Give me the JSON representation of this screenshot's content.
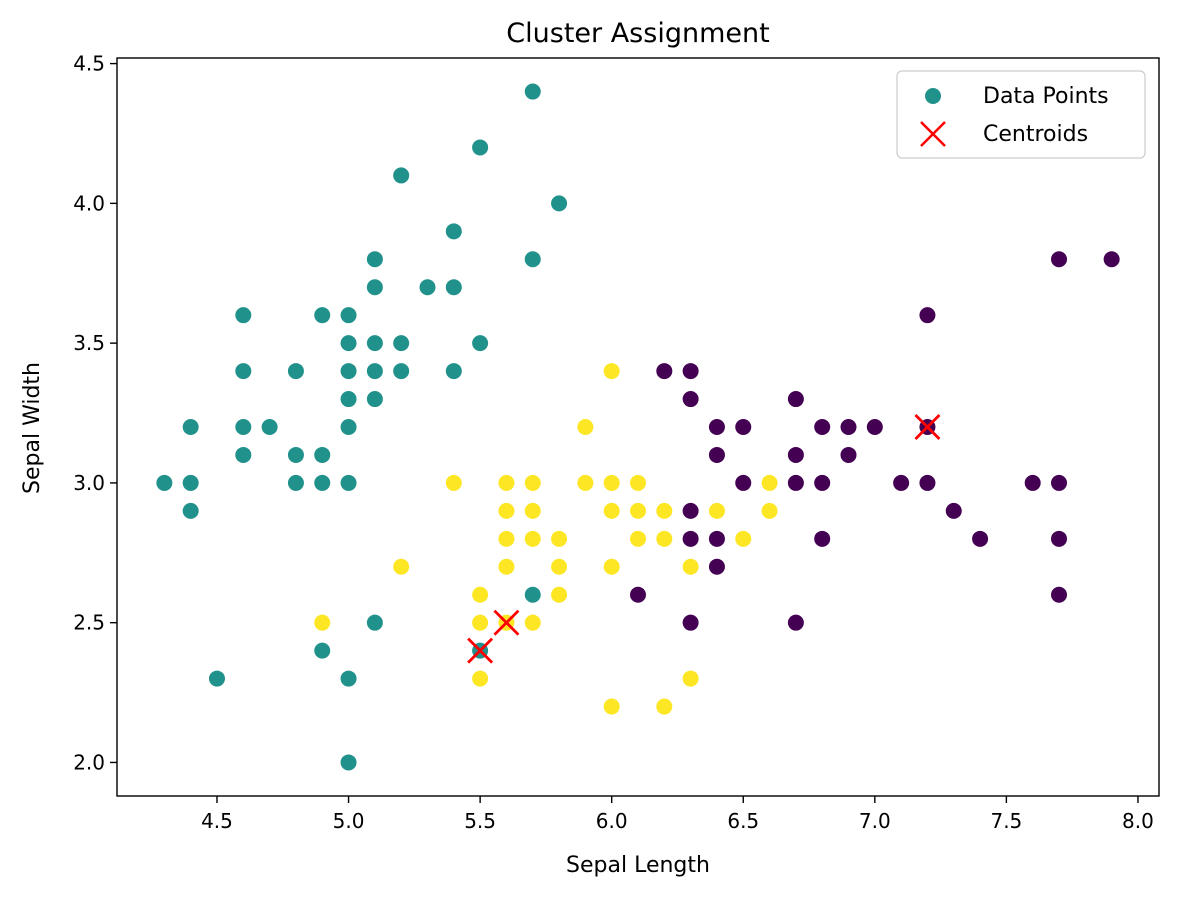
{
  "chart_data": {
    "type": "scatter",
    "title": "Cluster Assignment",
    "xlabel": "Sepal Length",
    "ylabel": "Sepal Width",
    "xlim": [
      4.12,
      8.08
    ],
    "ylim": [
      1.88,
      4.52
    ],
    "xticks": [
      "4.5",
      "5.0",
      "5.5",
      "6.0",
      "6.5",
      "7.0",
      "7.5",
      "8.0"
    ],
    "yticks": [
      "2.0",
      "2.5",
      "3.0",
      "3.5",
      "4.0",
      "4.5"
    ],
    "grid": false,
    "legend_position": "top-right",
    "legend": [
      {
        "label": "Data Points",
        "marker": "circle",
        "color": "#21918c"
      },
      {
        "label": "Centroids",
        "marker": "x",
        "color": "#ff0000"
      }
    ],
    "cluster_colors": {
      "purple": "#440154",
      "teal": "#21918c",
      "yellow": "#fde725"
    },
    "points": [
      [
        5.7,
        4.4,
        "teal"
      ],
      [
        5.5,
        4.2,
        "teal"
      ],
      [
        5.2,
        4.1,
        "teal"
      ],
      [
        5.8,
        4.0,
        "teal"
      ],
      [
        5.4,
        3.9,
        "teal"
      ],
      [
        5.1,
        3.8,
        "teal"
      ],
      [
        5.7,
        3.8,
        "teal"
      ],
      [
        5.1,
        3.7,
        "teal"
      ],
      [
        5.3,
        3.7,
        "teal"
      ],
      [
        5.4,
        3.7,
        "teal"
      ],
      [
        4.6,
        3.6,
        "teal"
      ],
      [
        4.9,
        3.6,
        "teal"
      ],
      [
        5.0,
        3.6,
        "teal"
      ],
      [
        5.0,
        3.5,
        "teal"
      ],
      [
        5.1,
        3.5,
        "teal"
      ],
      [
        5.2,
        3.5,
        "teal"
      ],
      [
        5.5,
        3.5,
        "teal"
      ],
      [
        4.6,
        3.4,
        "teal"
      ],
      [
        4.8,
        3.4,
        "teal"
      ],
      [
        5.0,
        3.4,
        "teal"
      ],
      [
        5.1,
        3.4,
        "teal"
      ],
      [
        5.2,
        3.4,
        "teal"
      ],
      [
        5.4,
        3.4,
        "teal"
      ],
      [
        5.0,
        3.3,
        "teal"
      ],
      [
        5.1,
        3.3,
        "teal"
      ],
      [
        4.4,
        3.2,
        "teal"
      ],
      [
        4.6,
        3.2,
        "teal"
      ],
      [
        4.7,
        3.2,
        "teal"
      ],
      [
        5.0,
        3.2,
        "teal"
      ],
      [
        4.6,
        3.1,
        "teal"
      ],
      [
        4.8,
        3.1,
        "teal"
      ],
      [
        4.9,
        3.1,
        "teal"
      ],
      [
        4.3,
        3.0,
        "teal"
      ],
      [
        4.4,
        3.0,
        "teal"
      ],
      [
        4.8,
        3.0,
        "teal"
      ],
      [
        4.9,
        3.0,
        "teal"
      ],
      [
        5.0,
        3.0,
        "teal"
      ],
      [
        4.4,
        2.9,
        "teal"
      ],
      [
        5.7,
        2.6,
        "teal"
      ],
      [
        5.1,
        2.5,
        "teal"
      ],
      [
        4.9,
        2.4,
        "teal"
      ],
      [
        5.5,
        2.4,
        "teal"
      ],
      [
        4.5,
        2.3,
        "teal"
      ],
      [
        5.0,
        2.3,
        "teal"
      ],
      [
        5.0,
        2.0,
        "teal"
      ],
      [
        6.0,
        3.4,
        "yellow"
      ],
      [
        5.9,
        3.2,
        "yellow"
      ],
      [
        5.4,
        3.0,
        "yellow"
      ],
      [
        5.6,
        3.0,
        "yellow"
      ],
      [
        5.7,
        3.0,
        "yellow"
      ],
      [
        5.9,
        3.0,
        "yellow"
      ],
      [
        6.0,
        3.0,
        "yellow"
      ],
      [
        6.1,
        3.0,
        "yellow"
      ],
      [
        6.6,
        3.0,
        "yellow"
      ],
      [
        5.6,
        2.9,
        "yellow"
      ],
      [
        5.7,
        2.9,
        "yellow"
      ],
      [
        6.0,
        2.9,
        "yellow"
      ],
      [
        6.1,
        2.9,
        "yellow"
      ],
      [
        6.2,
        2.9,
        "yellow"
      ],
      [
        6.4,
        2.9,
        "yellow"
      ],
      [
        6.6,
        2.9,
        "yellow"
      ],
      [
        5.6,
        2.8,
        "yellow"
      ],
      [
        5.7,
        2.8,
        "yellow"
      ],
      [
        5.8,
        2.8,
        "yellow"
      ],
      [
        6.1,
        2.8,
        "yellow"
      ],
      [
        6.2,
        2.8,
        "yellow"
      ],
      [
        6.5,
        2.8,
        "yellow"
      ],
      [
        5.2,
        2.7,
        "yellow"
      ],
      [
        5.6,
        2.7,
        "yellow"
      ],
      [
        5.8,
        2.7,
        "yellow"
      ],
      [
        6.0,
        2.7,
        "yellow"
      ],
      [
        6.3,
        2.7,
        "yellow"
      ],
      [
        5.5,
        2.6,
        "yellow"
      ],
      [
        5.8,
        2.6,
        "yellow"
      ],
      [
        4.9,
        2.5,
        "yellow"
      ],
      [
        5.5,
        2.5,
        "yellow"
      ],
      [
        5.6,
        2.5,
        "yellow"
      ],
      [
        5.7,
        2.5,
        "yellow"
      ],
      [
        5.5,
        2.3,
        "yellow"
      ],
      [
        6.3,
        2.3,
        "yellow"
      ],
      [
        6.0,
        2.2,
        "yellow"
      ],
      [
        6.2,
        2.2,
        "yellow"
      ],
      [
        7.7,
        3.8,
        "purple"
      ],
      [
        7.9,
        3.8,
        "purple"
      ],
      [
        7.2,
        3.6,
        "purple"
      ],
      [
        6.2,
        3.4,
        "purple"
      ],
      [
        6.3,
        3.4,
        "purple"
      ],
      [
        6.3,
        3.3,
        "purple"
      ],
      [
        6.7,
        3.3,
        "purple"
      ],
      [
        6.4,
        3.2,
        "purple"
      ],
      [
        6.5,
        3.2,
        "purple"
      ],
      [
        6.8,
        3.2,
        "purple"
      ],
      [
        6.9,
        3.2,
        "purple"
      ],
      [
        7.0,
        3.2,
        "purple"
      ],
      [
        7.2,
        3.2,
        "purple"
      ],
      [
        6.4,
        3.1,
        "purple"
      ],
      [
        6.7,
        3.1,
        "purple"
      ],
      [
        6.9,
        3.1,
        "purple"
      ],
      [
        6.5,
        3.0,
        "purple"
      ],
      [
        6.7,
        3.0,
        "purple"
      ],
      [
        6.8,
        3.0,
        "purple"
      ],
      [
        7.1,
        3.0,
        "purple"
      ],
      [
        7.2,
        3.0,
        "purple"
      ],
      [
        7.6,
        3.0,
        "purple"
      ],
      [
        7.7,
        3.0,
        "purple"
      ],
      [
        6.3,
        2.9,
        "purple"
      ],
      [
        7.3,
        2.9,
        "purple"
      ],
      [
        6.3,
        2.8,
        "purple"
      ],
      [
        6.4,
        2.8,
        "purple"
      ],
      [
        6.8,
        2.8,
        "purple"
      ],
      [
        7.4,
        2.8,
        "purple"
      ],
      [
        7.7,
        2.8,
        "purple"
      ],
      [
        6.4,
        2.7,
        "purple"
      ],
      [
        6.1,
        2.6,
        "purple"
      ],
      [
        7.7,
        2.6,
        "purple"
      ],
      [
        6.3,
        2.5,
        "purple"
      ],
      [
        6.7,
        2.5,
        "purple"
      ]
    ],
    "centroids": [
      [
        7.2,
        3.2
      ],
      [
        5.5,
        2.4
      ],
      [
        5.6,
        2.5
      ]
    ]
  }
}
